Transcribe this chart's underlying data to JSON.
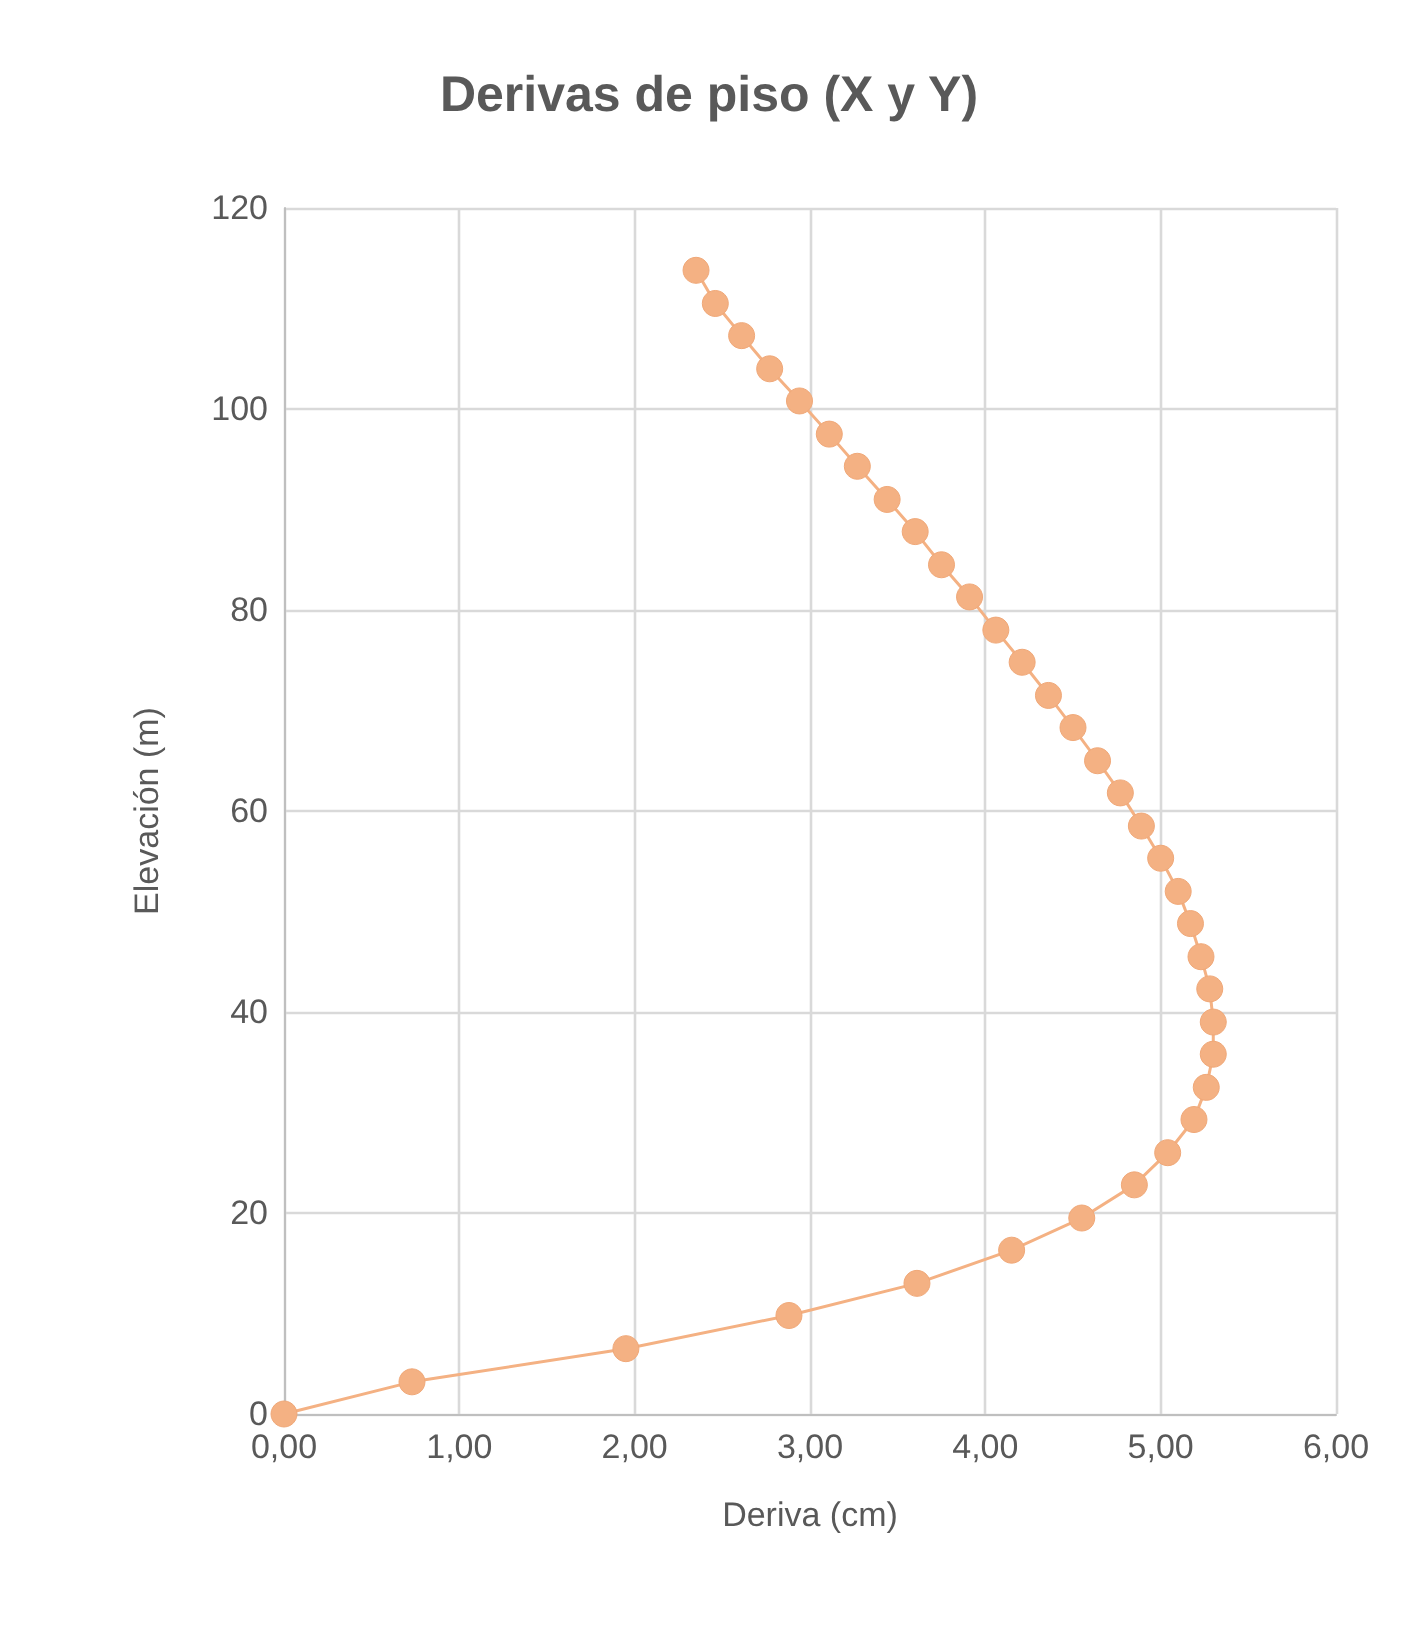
{
  "chart_data": {
    "type": "line",
    "title": "Derivas de piso (X y Y)",
    "xlabel": "Deriva (cm)",
    "ylabel": "Elevación (m)",
    "series": [
      {
        "color": "#f4b183",
        "x": [
          0,
          0.73,
          1.95,
          2.88,
          3.61,
          4.15,
          4.55,
          4.85,
          5.04,
          5.19,
          5.26,
          5.3,
          5.3,
          5.28,
          5.23,
          5.17,
          5.1,
          5.0,
          4.89,
          4.77,
          4.64,
          4.5,
          4.36,
          4.21,
          4.06,
          3.91,
          3.75,
          3.6,
          3.44,
          3.27,
          3.11,
          2.94,
          2.77,
          2.61,
          2.46,
          2.35
        ],
        "values": [
          0,
          3.2,
          6.5,
          9.8,
          13,
          16.3,
          19.5,
          22.8,
          26,
          29.3,
          32.5,
          35.8,
          39,
          42.3,
          45.5,
          48.8,
          52,
          55.3,
          58.5,
          61.8,
          65,
          68.3,
          71.5,
          74.8,
          78,
          81.3,
          84.5,
          87.8,
          91,
          94.3,
          97.5,
          100.8,
          104,
          107.3,
          110.5,
          113.8
        ]
      }
    ],
    "xlim": [
      0,
      6
    ],
    "xticks": [
      {
        "value": 0,
        "label": "0,00"
      },
      {
        "value": 1,
        "label": "1,00"
      },
      {
        "value": 2,
        "label": "2,00"
      },
      {
        "value": 3,
        "label": "3,00"
      },
      {
        "value": 4,
        "label": "4,00"
      },
      {
        "value": 5,
        "label": "5,00"
      },
      {
        "value": 6,
        "label": "6,00"
      }
    ],
    "ylim": [
      0,
      120
    ],
    "yticks": [
      0,
      20,
      40,
      60,
      80,
      100,
      120
    ],
    "grid": true,
    "marker": "circle",
    "line_style": "solid"
  }
}
